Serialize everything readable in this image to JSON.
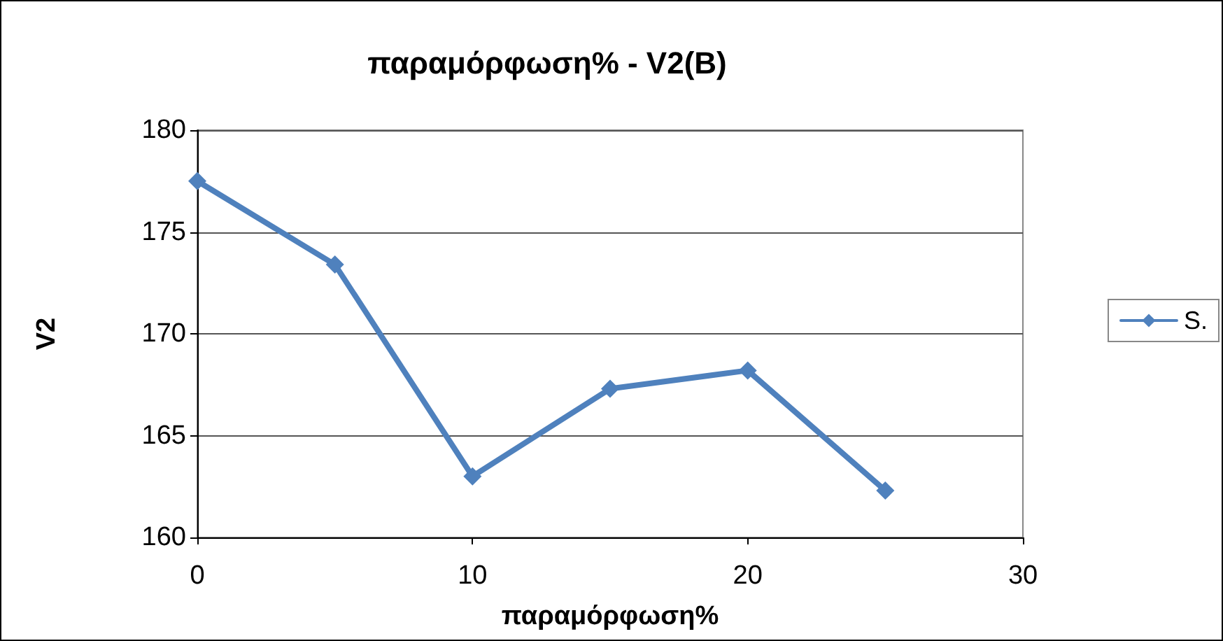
{
  "chart_data": {
    "type": "line",
    "title": "παραμόρφωση% - V2(B)",
    "xlabel": "παραμόρφωση%",
    "ylabel": "V2",
    "x": [
      0,
      5,
      10,
      15,
      20,
      25
    ],
    "series": [
      {
        "name": "S.",
        "color": "#4f81bd",
        "values": [
          177.5,
          173.4,
          163.0,
          167.3,
          168.2,
          162.3
        ]
      }
    ],
    "xlim": [
      0,
      30
    ],
    "xticks": [
      0,
      10,
      20,
      30
    ],
    "ylim": [
      160,
      180
    ],
    "yticks": [
      160,
      165,
      170,
      175,
      180
    ],
    "grid": "y",
    "legend": "right",
    "marker": "diamond",
    "line_style": "solid"
  }
}
